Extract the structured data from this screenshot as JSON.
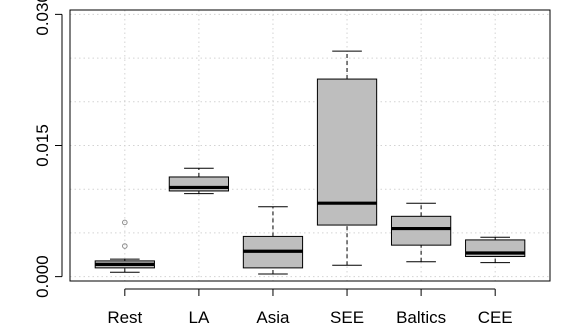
{
  "chart_data": {
    "type": "boxplot",
    "title": "",
    "xlabel": "",
    "ylabel": "",
    "ylim": [
      -0.0005,
      0.0305
    ],
    "y_ticks": [
      0.0,
      0.015,
      0.03
    ],
    "y_tick_labels": [
      "0.000",
      "0.015",
      "0.030"
    ],
    "grid": true,
    "box_color": "#bebebe",
    "categories": [
      "Rest",
      "LA",
      "Asia",
      "SEE",
      "Baltics",
      "CEE"
    ],
    "boxes": [
      {
        "name": "Rest",
        "whisker_low": 0.0005,
        "q1": 0.001,
        "median": 0.0014,
        "q3": 0.0018,
        "whisker_high": 0.002,
        "outliers": [
          0.0035,
          0.0062
        ]
      },
      {
        "name": "LA",
        "whisker_low": 0.0095,
        "q1": 0.0098,
        "median": 0.0102,
        "q3": 0.0114,
        "whisker_high": 0.0124,
        "outliers": []
      },
      {
        "name": "Asia",
        "whisker_low": 0.0003,
        "q1": 0.001,
        "median": 0.0029,
        "q3": 0.0046,
        "whisker_high": 0.008,
        "outliers": []
      },
      {
        "name": "SEE",
        "whisker_low": 0.0013,
        "q1": 0.0059,
        "median": 0.0084,
        "q3": 0.0226,
        "whisker_high": 0.0258,
        "outliers": []
      },
      {
        "name": "Baltics",
        "whisker_low": 0.0017,
        "q1": 0.0036,
        "median": 0.0055,
        "q3": 0.0069,
        "whisker_high": 0.0084,
        "outliers": []
      },
      {
        "name": "CEE",
        "whisker_low": 0.0016,
        "q1": 0.0023,
        "median": 0.0027,
        "q3": 0.0042,
        "whisker_high": 0.0045,
        "outliers": []
      }
    ]
  }
}
